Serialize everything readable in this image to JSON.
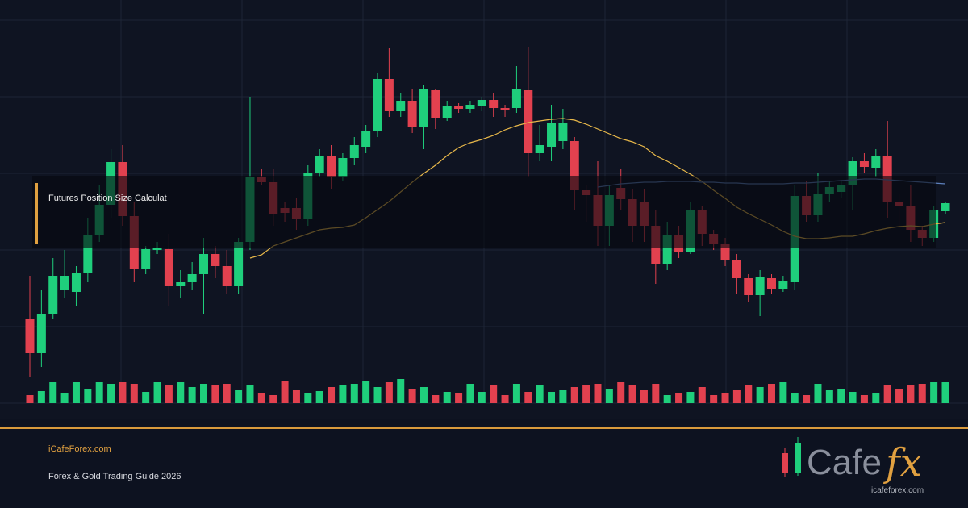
{
  "chart_data": {
    "type": "candlestick",
    "open": [
      105,
      62,
      110,
      140,
      138,
      162,
      208,
      246,
      299,
      232,
      166,
      190,
      191,
      145,
      150,
      160,
      185,
      170,
      145,
      200,
      280,
      274,
      242,
      242,
      228,
      285,
      307,
      280,
      304,
      318,
      338,
      402,
      362,
      375,
      342,
      388,
      354,
      368,
      365,
      368,
      376,
      366,
      366,
      388,
      310,
      318,
      325,
      325,
      264,
      258,
      220,
      267,
      253,
      250,
      220,
      172,
      209,
      187,
      240,
      210,
      198,
      178,
      155,
      134,
      155,
      142,
      150,
      257,
      233,
      260,
      262,
      270,
      300,
      292,
      307,
      250,
      245,
      215,
      205,
      238
    ],
    "high": [
      158,
      140,
      180,
      190,
      170,
      230,
      270,
      315,
      320,
      250,
      195,
      200,
      210,
      165,
      175,
      205,
      195,
      190,
      205,
      380,
      290,
      290,
      250,
      255,
      295,
      315,
      320,
      310,
      330,
      345,
      410,
      440,
      385,
      390,
      395,
      390,
      375,
      372,
      375,
      380,
      385,
      370,
      418,
      442,
      345,
      370,
      365,
      330,
      270,
      300,
      270,
      290,
      265,
      265,
      240,
      225,
      220,
      250,
      245,
      215,
      205,
      185,
      160,
      165,
      160,
      158,
      270,
      275,
      285,
      275,
      275,
      305,
      310,
      315,
      350,
      260,
      270,
      220,
      245,
      250
    ],
    "low": [
      32,
      45,
      105,
      130,
      120,
      150,
      200,
      230,
      220,
      150,
      160,
      185,
      120,
      130,
      140,
      110,
      155,
      135,
      135,
      190,
      270,
      220,
      225,
      215,
      220,
      280,
      265,
      275,
      295,
      310,
      330,
      355,
      355,
      335,
      315,
      340,
      350,
      360,
      360,
      362,
      355,
      355,
      360,
      280,
      300,
      300,
      315,
      240,
      225,
      195,
      195,
      240,
      200,
      200,
      148,
      165,
      180,
      185,
      195,
      190,
      170,
      135,
      125,
      108,
      135,
      138,
      140,
      225,
      225,
      250,
      255,
      240,
      285,
      280,
      230,
      220,
      200,
      195,
      200,
      235
    ],
    "close": [
      62,
      110,
      158,
      158,
      162,
      208,
      246,
      299,
      232,
      166,
      191,
      192,
      145,
      150,
      160,
      185,
      170,
      145,
      200,
      280,
      274,
      235,
      236,
      228,
      285,
      307,
      280,
      304,
      320,
      338,
      402,
      362,
      375,
      342,
      390,
      354,
      368,
      365,
      370,
      376,
      366,
      364,
      390,
      310,
      320,
      347,
      347,
      264,
      258,
      220,
      258,
      253,
      220,
      220,
      172,
      209,
      187,
      240,
      210,
      198,
      178,
      155,
      134,
      157,
      142,
      152,
      257,
      233,
      260,
      268,
      270,
      300,
      293,
      307,
      250,
      245,
      215,
      205,
      240,
      248
    ],
    "up_color": "#1fcf7c",
    "down_color": "#e2414f",
    "ylim": [
      0,
      475
    ],
    "volume": [
      10,
      15,
      26,
      12,
      26,
      18,
      26,
      24,
      26,
      24,
      14,
      26,
      22,
      26,
      20,
      24,
      22,
      24,
      16,
      22,
      12,
      10,
      28,
      16,
      12,
      15,
      20,
      22,
      24,
      28,
      20,
      26,
      30,
      18,
      20,
      10,
      14,
      12,
      24,
      14,
      22,
      10,
      24,
      14,
      22,
      14,
      16,
      20,
      22,
      24,
      18,
      26,
      22,
      16,
      24,
      10,
      12,
      14,
      20,
      10,
      12,
      16,
      22,
      20,
      24,
      26,
      12,
      10,
      24,
      16,
      18,
      14,
      10,
      12,
      22,
      18,
      22,
      24,
      26,
      26
    ],
    "vlim": [
      0,
      40
    ],
    "lines": [
      {
        "color": "#e8b84a",
        "values": [
          null,
          null,
          null,
          null,
          null,
          null,
          null,
          null,
          null,
          null,
          null,
          null,
          null,
          null,
          null,
          null,
          null,
          null,
          null,
          180,
          184,
          195,
          200,
          205,
          210,
          215,
          217,
          218,
          221,
          230,
          240,
          250,
          262,
          274,
          285,
          295,
          307,
          317,
          323,
          327,
          332,
          339,
          344,
          348,
          350,
          352,
          353,
          351,
          346,
          340,
          334,
          328,
          324,
          318,
          307,
          300,
          292,
          284,
          275,
          264,
          254,
          243,
          235,
          228,
          221,
          213,
          207,
          204,
          204,
          205,
          207,
          207,
          210,
          214,
          217,
          219,
          220,
          219,
          222,
          224
        ]
      },
      {
        "color": "#5d80bd",
        "values": [
          null,
          null,
          null,
          null,
          null,
          null,
          null,
          null,
          null,
          null,
          null,
          null,
          null,
          null,
          null,
          null,
          null,
          null,
          null,
          null,
          null,
          null,
          null,
          null,
          null,
          null,
          null,
          null,
          null,
          null,
          null,
          null,
          null,
          null,
          null,
          null,
          null,
          null,
          null,
          null,
          null,
          null,
          null,
          null,
          null,
          null,
          null,
          null,
          null,
          268,
          270,
          272,
          273,
          274,
          274,
          275,
          275,
          275,
          274,
          274,
          273,
          273,
          272,
          272,
          272,
          272,
          273,
          273,
          274,
          275,
          276,
          277,
          278,
          278,
          277,
          276,
          275,
          274,
          273,
          272
        ]
      }
    ]
  },
  "overlay": {
    "title": "Futures Position Size Calculat"
  },
  "footer": {
    "site": "iCafeForex.com",
    "subtitle": "Forex & Gold Trading Guide 2026"
  },
  "logo": {
    "brand": "Cafe",
    "mark": "fx",
    "url": "icafeforex.com"
  }
}
